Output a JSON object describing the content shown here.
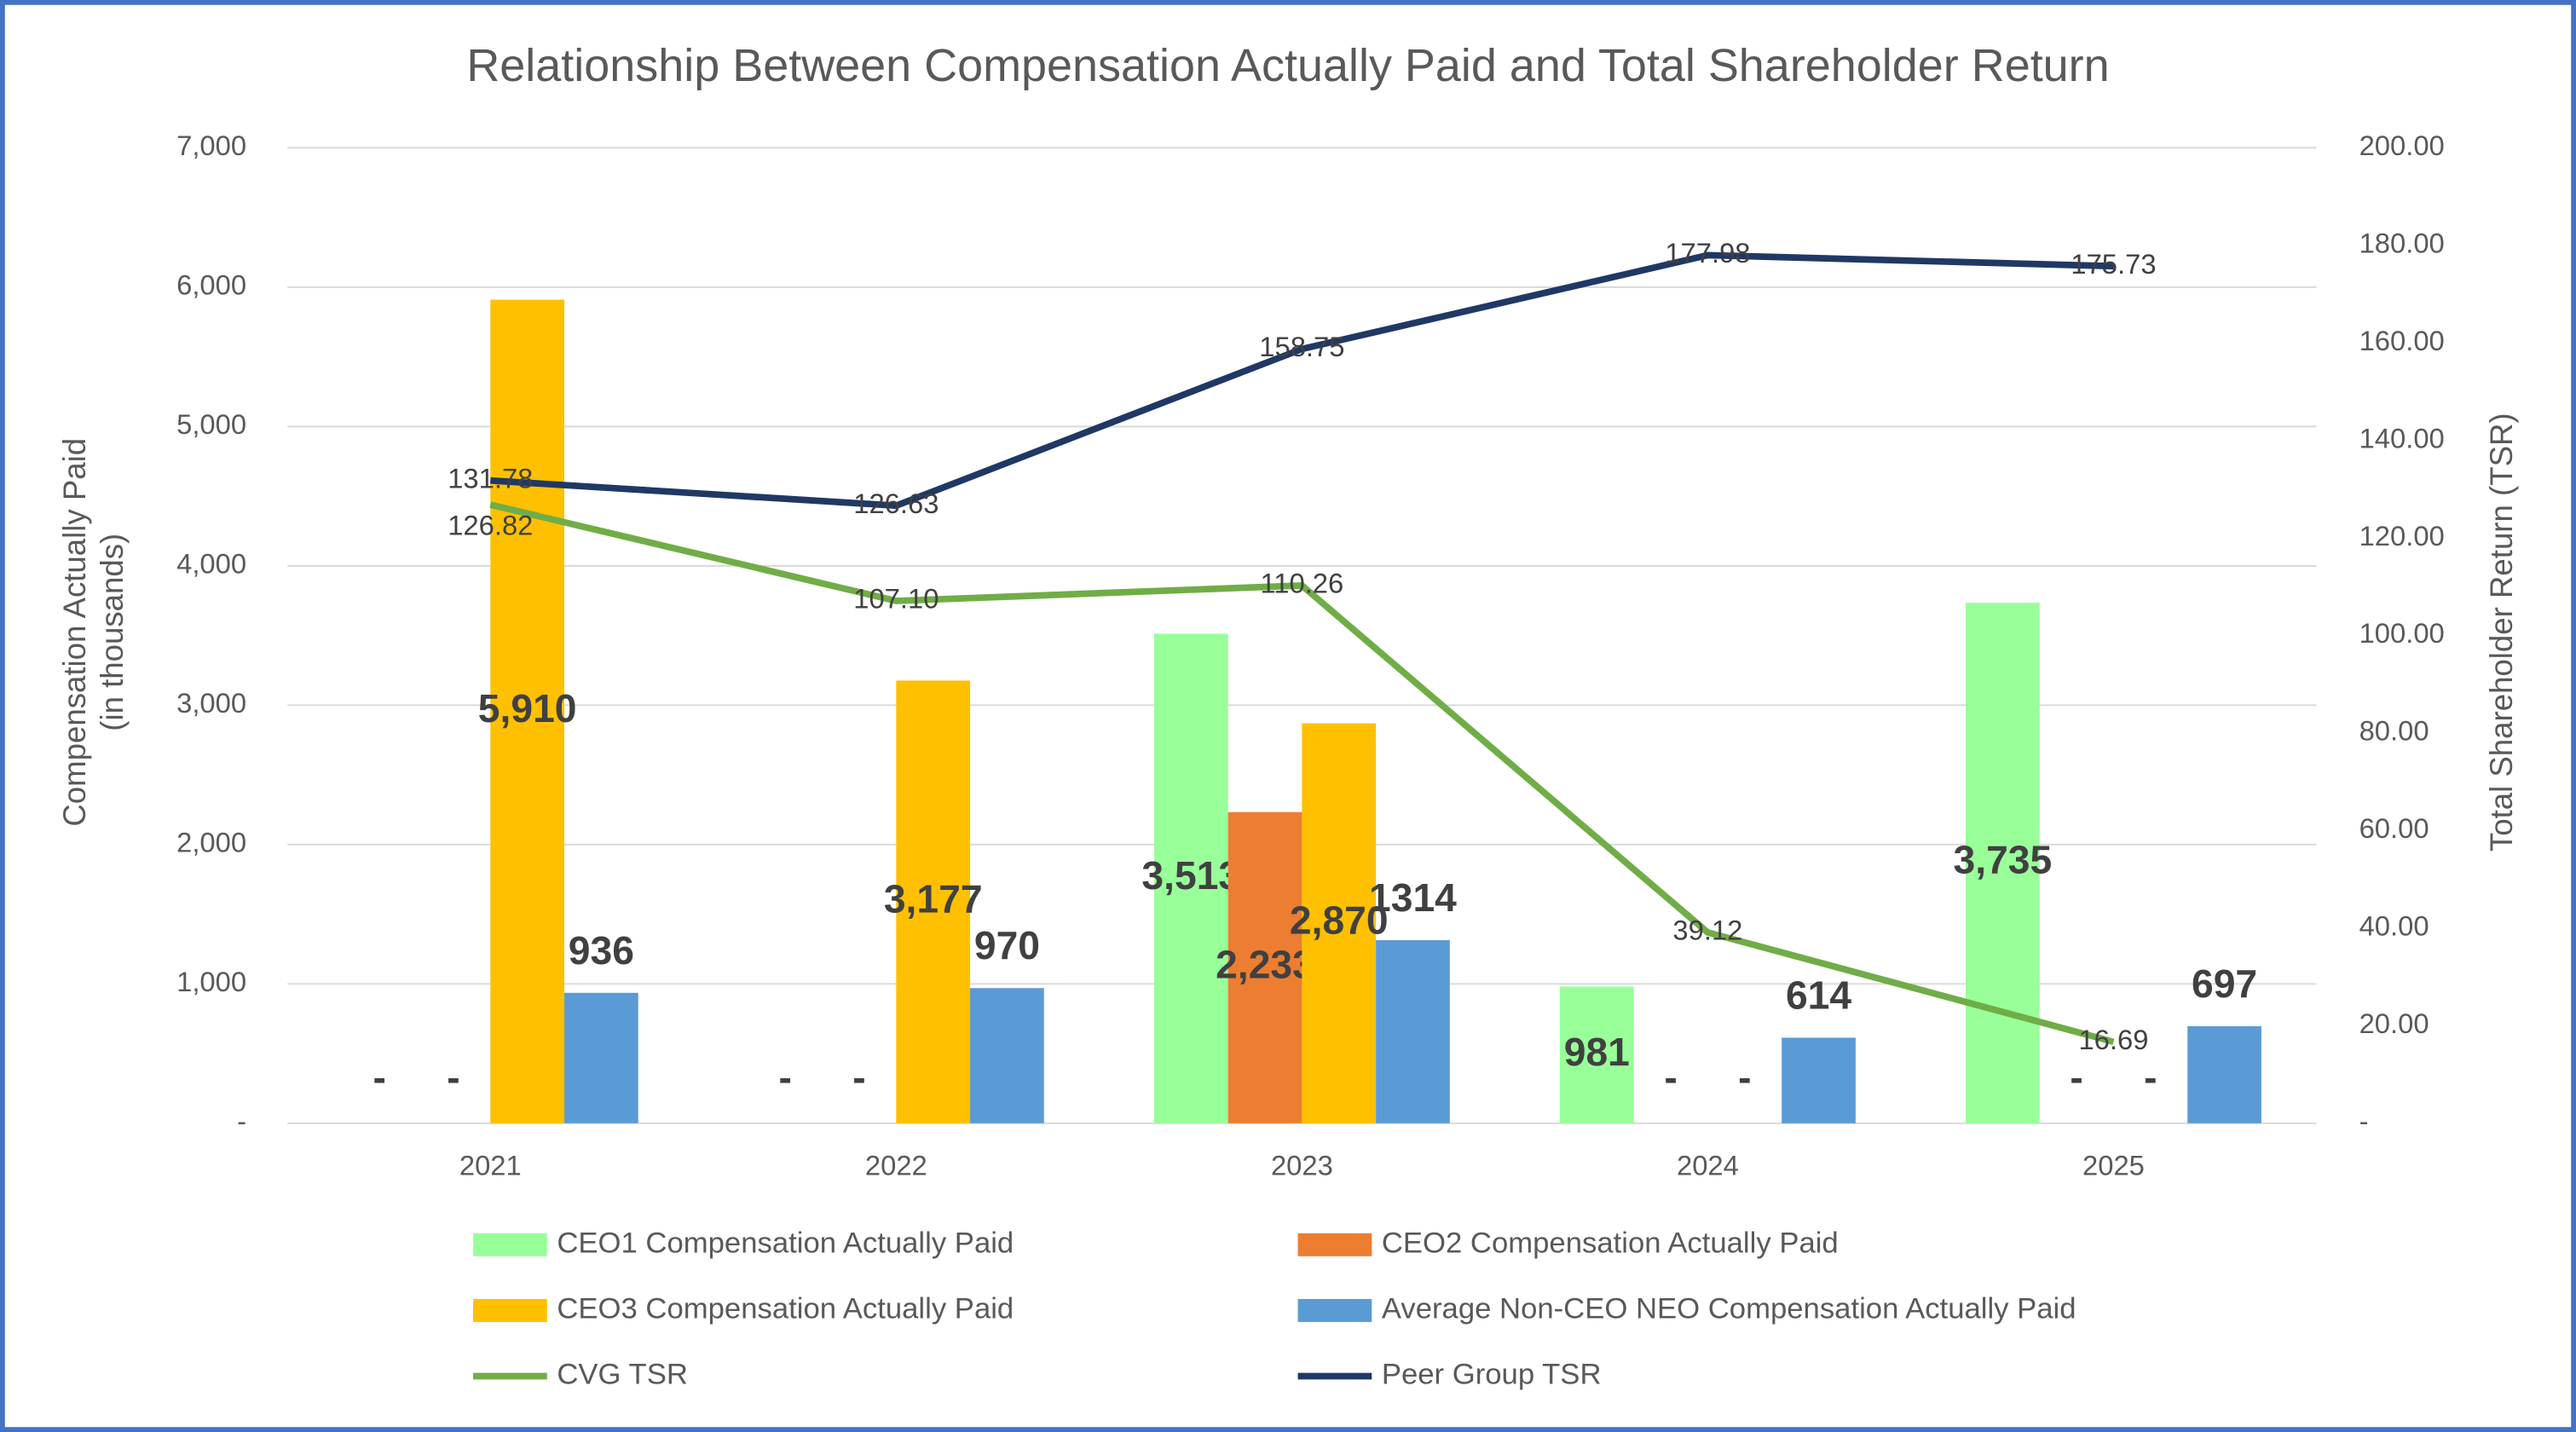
{
  "chart_data": {
    "type": "bar",
    "title": "Relationship Between Compensation Actually Paid and Total Shareholder Return",
    "y_label": "Compensation Actually Paid\n(in thousands)",
    "y2_label": "Total Shareholder Return (TSR)",
    "categories": [
      "2021",
      "2022",
      "2023",
      "2024",
      "2025"
    ],
    "ylim": [
      0,
      7000
    ],
    "yticks": [
      {
        "value": 0,
        "label": "-"
      },
      {
        "value": 1000,
        "label": "1,000"
      },
      {
        "value": 2000,
        "label": "2,000"
      },
      {
        "value": 3000,
        "label": "3,000"
      },
      {
        "value": 4000,
        "label": "4,000"
      },
      {
        "value": 5000,
        "label": "5,000"
      },
      {
        "value": 6000,
        "label": "6,000"
      },
      {
        "value": 7000,
        "label": "7,000"
      }
    ],
    "y2lim": [
      0,
      200
    ],
    "y2ticks": [
      {
        "value": 0,
        "label": "-"
      },
      {
        "value": 20,
        "label": "20.00"
      },
      {
        "value": 40,
        "label": "40.00"
      },
      {
        "value": 60,
        "label": "60.00"
      },
      {
        "value": 80,
        "label": "80.00"
      },
      {
        "value": 100,
        "label": "100.00"
      },
      {
        "value": 120,
        "label": "120.00"
      },
      {
        "value": 140,
        "label": "140.00"
      },
      {
        "value": 160,
        "label": "160.00"
      },
      {
        "value": 180,
        "label": "180.00"
      },
      {
        "value": 200,
        "label": "200.00"
      }
    ],
    "grid": true,
    "legend_position": "bottom",
    "series": [
      {
        "name": "CEO1 Compensation Actually Paid",
        "type": "bar",
        "color": "#99ff99",
        "values": [
          0,
          0,
          3513,
          981,
          3735
        ],
        "value_labels": [
          "-",
          "-",
          "3,513",
          "981",
          "3,735"
        ]
      },
      {
        "name": "CEO2 Compensation Actually Paid",
        "type": "bar",
        "color": "#ed7d31",
        "values": [
          0,
          0,
          2233,
          0,
          0
        ],
        "value_labels": [
          "-",
          "-",
          "2,233",
          "-",
          "-"
        ]
      },
      {
        "name": "CEO3 Compensation Actually Paid",
        "type": "bar",
        "color": "#ffc000",
        "values": [
          5910,
          3177,
          2870,
          0,
          0
        ],
        "value_labels": [
          "5,910",
          "3,177",
          "2,870",
          "-",
          "-"
        ]
      },
      {
        "name": "Average Non-CEO NEO Compensation Actually Paid",
        "type": "bar",
        "color": "#5b9bd5",
        "values": [
          936,
          970,
          1314,
          614,
          697
        ]
      },
      {
        "name": "CVG TSR",
        "type": "line",
        "axis": "y2",
        "color": "#70ad47",
        "values": [
          126.82,
          107.1,
          110.26,
          39.12,
          16.69
        ],
        "value_labels": [
          "126.82",
          "107.10",
          "110.26",
          "39.12",
          "16.69"
        ]
      },
      {
        "name": "Peer Group TSR",
        "type": "line",
        "axis": "y2",
        "color": "#203864",
        "values": [
          131.78,
          126.63,
          158.75,
          177.98,
          175.73
        ]
      }
    ]
  }
}
